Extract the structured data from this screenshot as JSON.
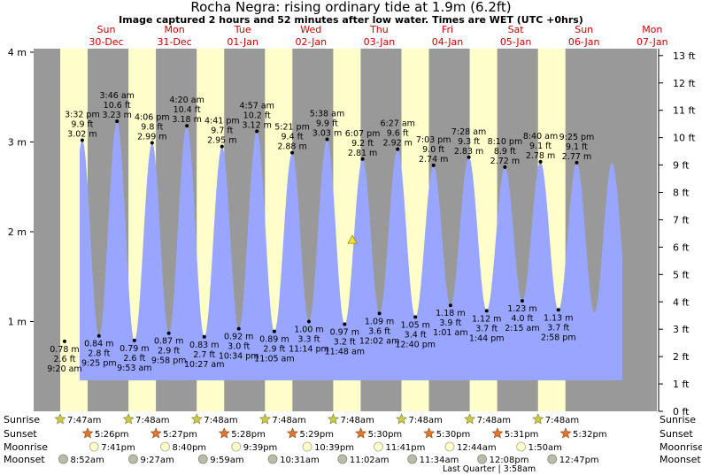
{
  "header": {
    "title": "Rocha Negra: rising  ordinary tide at 1.9m (6.2ft)",
    "subtitle": "Image captured 2 hours and 52 minutes after low water. Times are WET (UTC +0hrs)"
  },
  "chart_data": {
    "type": "area",
    "title": "Rocha Negra: rising  ordinary tide at 1.9m (6.2ft)",
    "ylabel_left_unit": "m",
    "ylabel_right_unit": "ft",
    "ylim_m": [
      0,
      4.1
    ],
    "left_ticks": [
      "1 m",
      "2 m",
      "3 m",
      "4 m"
    ],
    "right_ticks": [
      "0 ft",
      "1 ft",
      "2 ft",
      "3 ft",
      "4 ft",
      "5 ft",
      "6 ft",
      "7 ft",
      "8 ft",
      "9 ft",
      "10 ft",
      "11 ft",
      "12 ft",
      "13 ft"
    ],
    "days": [
      {
        "dow": "Sun",
        "date": "30-Dec"
      },
      {
        "dow": "Mon",
        "date": "31-Dec"
      },
      {
        "dow": "Tue",
        "date": "01-Jan"
      },
      {
        "dow": "Wed",
        "date": "02-Jan"
      },
      {
        "dow": "Thu",
        "date": "03-Jan"
      },
      {
        "dow": "Fri",
        "date": "04-Jan"
      },
      {
        "dow": "Sat",
        "date": "05-Jan"
      },
      {
        "dow": "Sun",
        "date": "06-Jan"
      },
      {
        "dow": "Mon",
        "date": "07-Jan"
      }
    ],
    "tides": [
      {
        "type": "low",
        "time": "9:20 am",
        "m": "0.78 m",
        "ft": "2.6 ft",
        "h": 0.78
      },
      {
        "type": "high",
        "time": "3:32 pm",
        "m": "3.02 m",
        "ft": "9.9 ft",
        "h": 3.02
      },
      {
        "type": "low",
        "time": "9:25 pm",
        "m": "0.84 m",
        "ft": "2.8 ft",
        "h": 0.84
      },
      {
        "type": "high",
        "time": "3:46 am",
        "m": "3.23 m",
        "ft": "10.6 ft",
        "h": 3.23
      },
      {
        "type": "low",
        "time": "9:53 am",
        "m": "0.79 m",
        "ft": "2.6 ft",
        "h": 0.79
      },
      {
        "type": "high",
        "time": "4:06 pm",
        "m": "2.99 m",
        "ft": "9.8 ft",
        "h": 2.99
      },
      {
        "type": "low",
        "time": "9:58 pm",
        "m": "0.87 m",
        "ft": "2.9 ft",
        "h": 0.87
      },
      {
        "type": "high",
        "time": "4:20 am",
        "m": "3.18 m",
        "ft": "10.4 ft",
        "h": 3.18
      },
      {
        "type": "low",
        "time": "10:27 am",
        "m": "0.83 m",
        "ft": "2.7 ft",
        "h": 0.83
      },
      {
        "type": "high",
        "time": "4:41 pm",
        "m": "2.95 m",
        "ft": "9.7 ft",
        "h": 2.95
      },
      {
        "type": "low",
        "time": "10:34 pm",
        "m": "0.92 m",
        "ft": "3.0 ft",
        "h": 0.92
      },
      {
        "type": "high",
        "time": "4:57 am",
        "m": "3.12 m",
        "ft": "10.2 ft",
        "h": 3.12
      },
      {
        "type": "low",
        "time": "11:05 am",
        "m": "0.89 m",
        "ft": "2.9 ft",
        "h": 0.89
      },
      {
        "type": "high",
        "time": "5:21 pm",
        "m": "2.88 m",
        "ft": "9.4 ft",
        "h": 2.88
      },
      {
        "type": "low",
        "time": "11:14 pm",
        "m": "1.00 m",
        "ft": "3.3 ft",
        "h": 1.0
      },
      {
        "type": "high",
        "time": "5:38 am",
        "m": "3.03 m",
        "ft": "9.9 ft",
        "h": 3.03
      },
      {
        "type": "low",
        "time": "11:48 am",
        "m": "0.97 m",
        "ft": "3.2 ft",
        "h": 0.97
      },
      {
        "type": "high",
        "time": "6:07 pm",
        "m": "2.81 m",
        "ft": "9.2 ft",
        "h": 2.81
      },
      {
        "type": "low",
        "time": "12:02 am",
        "m": "1.09 m",
        "ft": "3.6 ft",
        "h": 1.09
      },
      {
        "type": "high",
        "time": "6:27 am",
        "m": "2.92 m",
        "ft": "9.6 ft",
        "h": 2.92
      },
      {
        "type": "low",
        "time": "12:40 pm",
        "m": "1.05 m",
        "ft": "3.4 ft",
        "h": 1.05
      },
      {
        "type": "high",
        "time": "7:03 pm",
        "m": "2.74 m",
        "ft": "9.0 ft",
        "h": 2.74
      },
      {
        "type": "low",
        "time": "1:01 am",
        "m": "1.18 m",
        "ft": "3.9 ft",
        "h": 1.18
      },
      {
        "type": "high",
        "time": "7:28 am",
        "m": "2.83 m",
        "ft": "9.3 ft",
        "h": 2.83
      },
      {
        "type": "low",
        "time": "1:44 pm",
        "m": "1.12 m",
        "ft": "3.7 ft",
        "h": 1.12
      },
      {
        "type": "high",
        "time": "8:10 pm",
        "m": "2.72 m",
        "ft": "8.9 ft",
        "h": 2.72
      },
      {
        "type": "low",
        "time": "2:15 am",
        "m": "1.23 m",
        "ft": "4.0 ft",
        "h": 1.23
      },
      {
        "type": "high",
        "time": "8:40 am",
        "m": "2.78 m",
        "ft": "9.1 ft",
        "h": 2.78
      },
      {
        "type": "low",
        "time": "2:58 pm",
        "m": "1.13 m",
        "ft": "3.7 ft",
        "h": 1.13
      },
      {
        "type": "high",
        "time": "9:25 pm",
        "m": "2.77 m",
        "ft": "9.1 ft",
        "h": 2.77
      }
    ],
    "current_marker_m": 1.9
  },
  "astro": {
    "row_labels": [
      "Sunrise",
      "Sunset",
      "Moonrise",
      "Moonset"
    ],
    "sunrise": [
      "7:47am",
      "7:48am",
      "7:48am",
      "7:48am",
      "7:48am",
      "7:48am",
      "7:48am",
      "7:48am"
    ],
    "sunset": [
      "5:26pm",
      "5:27pm",
      "5:28pm",
      "5:29pm",
      "5:30pm",
      "5:30pm",
      "5:31pm",
      "5:32pm"
    ],
    "moonrise": [
      "7:41pm",
      "8:40pm",
      "9:39pm",
      "10:39pm",
      "11:41pm",
      "12:44am",
      "1:50am"
    ],
    "moonset": [
      "8:52am",
      "9:27am",
      "9:59am",
      "10:31am",
      "11:02am",
      "11:34am",
      "12:08pm",
      "12:47pm"
    ],
    "moon_phase": "Last Quarter | 3:58am"
  },
  "colors": {
    "night": "#999999",
    "day": "#ffffcc",
    "water": "#99a6ff",
    "day_label": "#cc0000",
    "marker": "#ffdd33",
    "sun": "#cccc44",
    "sunset": "#e07830",
    "moonrise": "#ffffcc",
    "moonset": "#bbbbaa"
  }
}
